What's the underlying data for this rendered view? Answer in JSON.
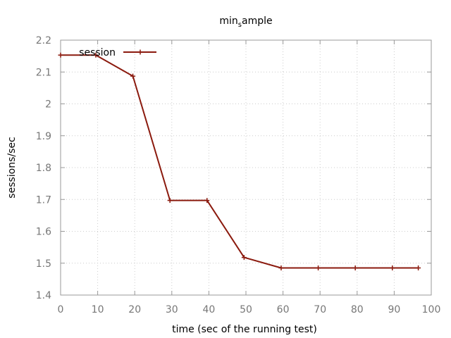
{
  "chart_data": {
    "type": "line",
    "title": {
      "main": "min",
      "subscript": "s",
      "rest": "ample"
    },
    "xlabel": "time (sec of the running test)",
    "ylabel": "sessions/sec",
    "xlim": [
      0,
      100
    ],
    "ylim": [
      1.4,
      2.2
    ],
    "xticks": [
      0,
      10,
      20,
      30,
      40,
      50,
      60,
      70,
      80,
      90,
      100
    ],
    "yticks": [
      1.4,
      1.5,
      1.6,
      1.7,
      1.8,
      1.9,
      2.0,
      2.1,
      2.2
    ],
    "ytick_labels": [
      "1.4",
      "1.5",
      "1.6",
      "1.7",
      "1.8",
      "1.9",
      "2",
      "2.1",
      "2.2"
    ],
    "grid": true,
    "legend_position": "top-left",
    "series": [
      {
        "name": "session",
        "color": "#8b1a0e",
        "x": [
          0,
          9.5,
          19.5,
          29.5,
          39.5,
          49.5,
          59.5,
          69.5,
          79.5,
          89.5,
          96.5
        ],
        "y": [
          2.153,
          2.153,
          2.087,
          1.697,
          1.697,
          1.518,
          1.485,
          1.485,
          1.485,
          1.485,
          1.485
        ]
      }
    ]
  }
}
